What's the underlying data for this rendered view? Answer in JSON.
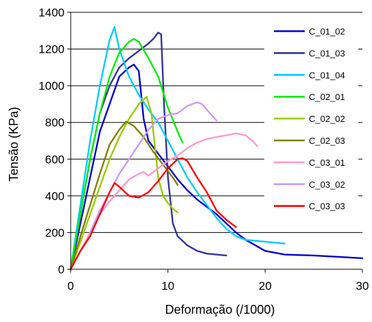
{
  "chart_data": {
    "type": "line",
    "title": "",
    "xlabel": "Deformação (/1000)",
    "ylabel": "Tensão (KPa)",
    "xlim": [
      0,
      30
    ],
    "ylim": [
      0,
      1400
    ],
    "xticks": [
      0,
      10,
      20,
      30
    ],
    "yticks": [
      0,
      200,
      400,
      600,
      800,
      1000,
      1200,
      1400
    ],
    "grid": "horizontal",
    "legend_position": "right",
    "series": [
      {
        "name": "C_01_02",
        "color": "#0000cc",
        "x": [
          0,
          1,
          2,
          3,
          4,
          5,
          6,
          6.5,
          7,
          7.5,
          8,
          9,
          10,
          11,
          12,
          13,
          14,
          15,
          16,
          17,
          18,
          19,
          20,
          22,
          25,
          30
        ],
        "y": [
          0,
          250,
          500,
          750,
          900,
          1050,
          1100,
          1115,
          1080,
          820,
          700,
          630,
          560,
          490,
          430,
          380,
          340,
          300,
          250,
          200,
          160,
          130,
          100,
          80,
          75,
          60
        ]
      },
      {
        "name": "C_01_03",
        "color": "#333399",
        "x": [
          0,
          1,
          2,
          3,
          4,
          5,
          6,
          7,
          8,
          8.5,
          9,
          9.3,
          9.6,
          10,
          10.5,
          11,
          12,
          13,
          14,
          15,
          16
        ],
        "y": [
          0,
          300,
          600,
          850,
          1000,
          1100,
          1150,
          1190,
          1230,
          1255,
          1290,
          1280,
          900,
          500,
          250,
          180,
          130,
          100,
          85,
          80,
          75
        ]
      },
      {
        "name": "C_01_04",
        "color": "#00ccff",
        "x": [
          0,
          1,
          2,
          3,
          4,
          4.5,
          5,
          6,
          7,
          8,
          9,
          10,
          11,
          12,
          13,
          14,
          15,
          16,
          17,
          18,
          20,
          22
        ],
        "y": [
          0,
          350,
          700,
          1000,
          1250,
          1320,
          1200,
          1050,
          950,
          870,
          800,
          700,
          600,
          500,
          420,
          350,
          280,
          220,
          180,
          160,
          150,
          140
        ]
      },
      {
        "name": "C_02_01",
        "color": "#00ee00",
        "x": [
          0,
          1,
          2,
          3,
          4,
          5,
          6,
          6.5,
          7,
          8,
          9,
          10,
          11,
          11.5
        ],
        "y": [
          0,
          300,
          600,
          850,
          1050,
          1180,
          1240,
          1255,
          1240,
          1150,
          1050,
          880,
          750,
          690
        ]
      },
      {
        "name": "C_02_02",
        "color": "#99cc00",
        "x": [
          0,
          1,
          2,
          3,
          4,
          5,
          6,
          7,
          7.8,
          8.3,
          8.6,
          9,
          9.5,
          10,
          10.5,
          11
        ],
        "y": [
          0,
          150,
          300,
          450,
          600,
          720,
          820,
          900,
          940,
          850,
          700,
          500,
          400,
          360,
          330,
          310
        ]
      },
      {
        "name": "C_02_03",
        "color": "#808000",
        "x": [
          0,
          1,
          2,
          3,
          4,
          5,
          5.7,
          6.5,
          7.5,
          8.5,
          9.5,
          10.5,
          11
        ],
        "y": [
          0,
          180,
          350,
          520,
          680,
          760,
          805,
          780,
          720,
          640,
          570,
          500,
          460
        ]
      },
      {
        "name": "C_03_01",
        "color": "#ff99cc",
        "x": [
          0,
          1,
          2,
          3,
          4,
          5,
          6,
          7,
          7.5,
          8,
          9,
          10,
          11,
          12,
          13,
          14,
          15,
          16,
          17,
          18,
          18.7,
          19.2
        ],
        "y": [
          0,
          100,
          200,
          300,
          370,
          430,
          490,
          520,
          530,
          510,
          550,
          590,
          620,
          660,
          690,
          710,
          720,
          730,
          740,
          730,
          700,
          670
        ]
      },
      {
        "name": "C_03_02",
        "color": "#cc99ff",
        "x": [
          2,
          3,
          4,
          5,
          6,
          7,
          8,
          9,
          10,
          11,
          12,
          13,
          13.5,
          14,
          14.5,
          15
        ],
        "y": [
          200,
          320,
          420,
          520,
          600,
          680,
          760,
          820,
          840,
          850,
          890,
          910,
          900,
          870,
          840,
          810
        ]
      },
      {
        "name": "C_03_03",
        "color": "#ff0000",
        "x": [
          0,
          1,
          2,
          3,
          4,
          4.5,
          5,
          6,
          7,
          8,
          9,
          10,
          11,
          11.5,
          12,
          13,
          14,
          15,
          16,
          17
        ],
        "y": [
          0,
          100,
          180,
          300,
          420,
          470,
          450,
          400,
          390,
          420,
          480,
          550,
          600,
          605,
          590,
          500,
          420,
          320,
          270,
          230
        ]
      }
    ]
  }
}
